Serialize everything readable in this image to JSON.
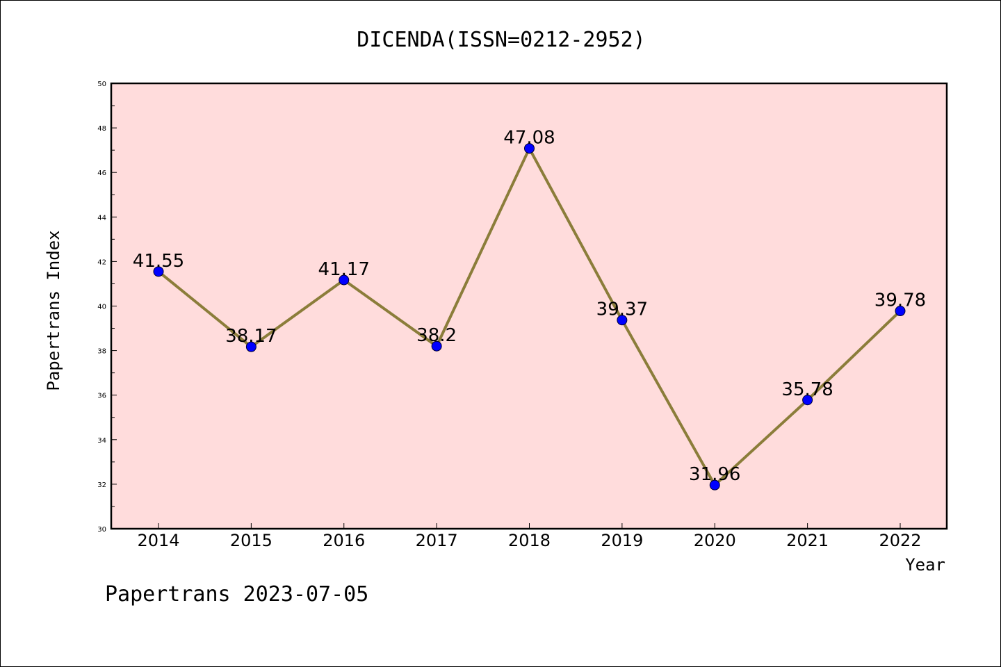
{
  "chart_data": {
    "type": "line",
    "title": "DICENDA(ISSN=0212-2952)",
    "xlabel": "Year",
    "ylabel": "Papertrans Index",
    "x": [
      "2014",
      "2015",
      "2016",
      "2017",
      "2018",
      "2019",
      "2020",
      "2021",
      "2022"
    ],
    "series": [
      {
        "values": [
          41.55,
          38.17,
          41.17,
          38.2,
          47.08,
          39.37,
          31.96,
          35.78,
          39.78
        ],
        "labels": [
          "41.55",
          "38.17",
          "41.17",
          "38.2",
          "47.08",
          "39.37",
          "31.96",
          "35.78",
          "39.78"
        ]
      }
    ],
    "ylim": [
      30,
      50
    ],
    "yticks": [
      "30",
      "32",
      "34",
      "36",
      "38",
      "40",
      "42",
      "44",
      "46",
      "48",
      "50"
    ],
    "grid": false,
    "colors": {
      "plot_background": "#ffdcdc",
      "line": "#8b7d3a",
      "marker": "#0000ff"
    }
  },
  "footer": {
    "text": "Papertrans 2023-07-05"
  }
}
